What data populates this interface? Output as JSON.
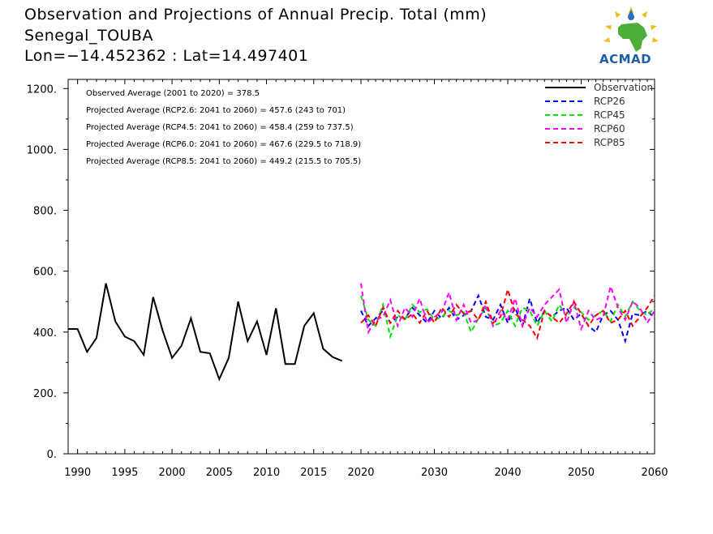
{
  "header": {
    "title": "Observation and Projections of Annual Precip. Total (mm)",
    "location": "Senegal_TOUBA",
    "coords": "Lon=−14.452362 : Lat=14.497401"
  },
  "logo": {
    "text": "ACMAD"
  },
  "colors": {
    "observation": "#000000",
    "rcp26": "#0000ff",
    "rcp45": "#00e000",
    "rcp60": "#ff00ff",
    "rcp85": "#ff0000"
  },
  "chart_data": {
    "type": "line",
    "title": "Observation and Projections of Annual Precip. Total (mm)",
    "xlim": [
      1989,
      2060
    ],
    "ylim": [
      0,
      1230
    ],
    "y_ticks": [
      0,
      200,
      400,
      600,
      800,
      1000,
      1200
    ],
    "y_tick_labels": [
      "0.",
      "200.",
      "400.",
      "600.",
      "800.",
      "1000.",
      "1200."
    ],
    "x_ticks": [
      1990,
      1995,
      2000,
      2005,
      2010,
      2015,
      2020,
      2030,
      2040,
      2050,
      2060
    ],
    "x_tick_labels": [
      "1990",
      "1995",
      "2000",
      "2005",
      "2010",
      "2015",
      "2020",
      "2030",
      "2040",
      "2050",
      "2060"
    ],
    "legend_position": "top-right",
    "annotations": [
      "Observed Average (2001 to 2020) = 378.5",
      "Projected Average (RCP2.6: 2041 to 2060) = 457.6 (243 to 701)",
      "Projected Average (RCP4.5: 2041 to 2060) = 458.4 (259 to 737.5)",
      "Projected Average (RCP6.0: 2041 to 2060) = 467.6 (229.5 to 718.9)",
      "Projected Average (RCP8.5: 2041 to 2060) = 449.2 (215.5 to 705.5)"
    ],
    "series": [
      {
        "name": "Observation",
        "key": "observation",
        "dashed": false,
        "x": [
          1989,
          1990,
          1991,
          1992,
          1993,
          1994,
          1995,
          1996,
          1997,
          1998,
          1999,
          2000,
          2001,
          2002,
          2003,
          2004,
          2005,
          2006,
          2007,
          2008,
          2009,
          2010,
          2011,
          2012,
          2013,
          2014,
          2015,
          2016,
          2017,
          2018,
          2019,
          2020
        ],
        "values": [
          410,
          410,
          335,
          380,
          560,
          435,
          385,
          370,
          325,
          515,
          405,
          315,
          355,
          445,
          335,
          330,
          245,
          315,
          500,
          370,
          435,
          325,
          478,
          295,
          295,
          420,
          462,
          345,
          318,
          305,
          null,
          null
        ]
      },
      {
        "name": "RCP26",
        "key": "rcp26",
        "dashed": true,
        "x": [
          2020,
          2021,
          2022,
          2023,
          2024,
          2025,
          2026,
          2027,
          2028,
          2029,
          2030,
          2031,
          2032,
          2033,
          2034,
          2035,
          2036,
          2037,
          2038,
          2039,
          2040,
          2041,
          2042,
          2043,
          2044,
          2045,
          2046,
          2047,
          2048,
          2049,
          2050,
          2051,
          2052,
          2053,
          2054,
          2055,
          2056,
          2057,
          2058,
          2059,
          2060
        ],
        "values": [
          470,
          420,
          445,
          470,
          430,
          450,
          445,
          480,
          455,
          430,
          470,
          445,
          480,
          440,
          455,
          470,
          520,
          450,
          440,
          490,
          430,
          480,
          420,
          510,
          430,
          470,
          450,
          470,
          480,
          440,
          460,
          420,
          400,
          455,
          470,
          440,
          370,
          460,
          455,
          470,
          445
        ]
      },
      {
        "name": "RCP45",
        "key": "rcp45",
        "dashed": true,
        "x": [
          2020,
          2021,
          2022,
          2023,
          2024,
          2025,
          2026,
          2027,
          2028,
          2029,
          2030,
          2031,
          2032,
          2033,
          2034,
          2035,
          2036,
          2037,
          2038,
          2039,
          2040,
          2041,
          2042,
          2043,
          2044,
          2045,
          2046,
          2047,
          2048,
          2049,
          2050,
          2051,
          2052,
          2053,
          2054,
          2055,
          2056,
          2057,
          2058,
          2059,
          2060
        ],
        "values": [
          520,
          440,
          420,
          490,
          385,
          455,
          440,
          490,
          465,
          475,
          440,
          450,
          470,
          455,
          465,
          400,
          445,
          480,
          420,
          430,
          470,
          420,
          480,
          470,
          420,
          470,
          435,
          490,
          450,
          480,
          465,
          440,
          455,
          470,
          435,
          490,
          450,
          500,
          470,
          455,
          480
        ]
      },
      {
        "name": "RCP60",
        "key": "rcp60",
        "dashed": true,
        "x": [
          2020,
          2021,
          2022,
          2023,
          2024,
          2025,
          2026,
          2027,
          2028,
          2029,
          2030,
          2031,
          2032,
          2033,
          2034,
          2035,
          2036,
          2037,
          2038,
          2039,
          2040,
          2041,
          2042,
          2043,
          2044,
          2045,
          2046,
          2047,
          2048,
          2049,
          2050,
          2051,
          2052,
          2053,
          2054,
          2055,
          2056,
          2057,
          2058,
          2059,
          2060
        ],
        "values": [
          560,
          400,
          440,
          450,
          505,
          420,
          480,
          450,
          510,
          430,
          450,
          465,
          530,
          440,
          490,
          430,
          440,
          490,
          420,
          470,
          440,
          510,
          420,
          480,
          450,
          490,
          515,
          540,
          430,
          500,
          410,
          470,
          440,
          450,
          550,
          480,
          440,
          500,
          480,
          430,
          470
        ]
      },
      {
        "name": "RCP85",
        "key": "rcp85",
        "dashed": true,
        "x": [
          2020,
          2021,
          2022,
          2023,
          2024,
          2025,
          2026,
          2027,
          2028,
          2029,
          2030,
          2031,
          2032,
          2033,
          2034,
          2035,
          2036,
          2037,
          2038,
          2039,
          2040,
          2041,
          2042,
          2043,
          2044,
          2045,
          2046,
          2047,
          2048,
          2049,
          2050,
          2051,
          2052,
          2053,
          2054,
          2055,
          2056,
          2057,
          2058,
          2059,
          2060
        ],
        "values": [
          430,
          455,
          420,
          480,
          430,
          470,
          440,
          460,
          430,
          470,
          430,
          480,
          450,
          490,
          460,
          470,
          440,
          500,
          430,
          450,
          540,
          460,
          440,
          420,
          380,
          470,
          450,
          430,
          460,
          500,
          460,
          420,
          455,
          470,
          430,
          440,
          470,
          420,
          450,
          480,
          520
        ]
      }
    ]
  }
}
